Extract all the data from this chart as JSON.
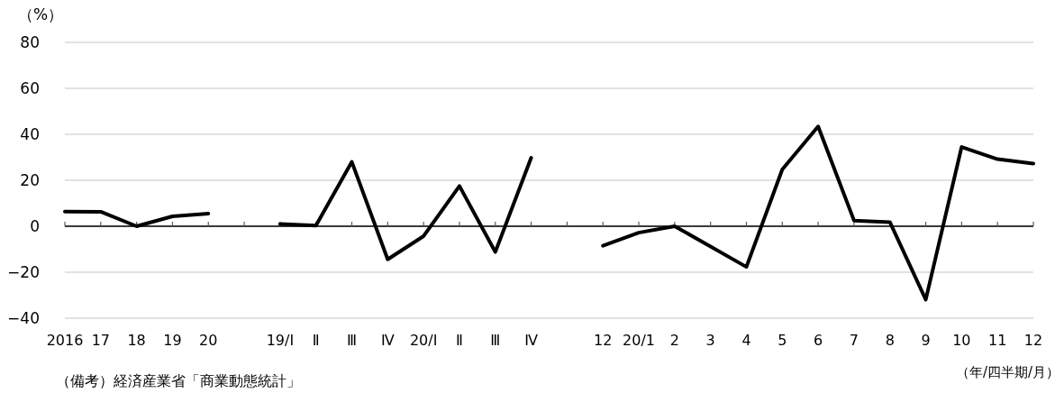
{
  "chart_data": {
    "type": "line",
    "ylabel": "（%）",
    "xlabel": "（年/四半期/月）",
    "annotations": [
      "（備考）経済産業省「商業動態統計」"
    ],
    "categories": [
      "2016",
      "17",
      "18",
      "19",
      "20",
      null,
      "19/Ⅰ",
      "Ⅱ",
      "Ⅲ",
      "Ⅳ",
      "20/Ⅰ",
      "Ⅱ",
      "Ⅲ",
      "Ⅳ",
      null,
      "12",
      "20/1",
      "2",
      "3",
      "4",
      "5",
      "6",
      "7",
      "8",
      "9",
      "10",
      "11",
      "12"
    ],
    "series": [
      {
        "color": "#000000",
        "values": [
          6.4,
          6.3,
          0,
          4.3,
          5.5,
          null,
          1.0,
          0.3,
          28.0,
          -14.4,
          -4.3,
          17.5,
          -11.2,
          29.8,
          null,
          -8.5,
          -2.8,
          0,
          -8.8,
          -17.7,
          24.7,
          43.4,
          2.5,
          1.8,
          -31.9,
          34.5,
          29.2,
          27.3
        ]
      }
    ],
    "ylim": [
      -40,
      80
    ],
    "yticks": [
      -40,
      -20,
      0,
      20,
      40,
      60,
      80
    ],
    "grid": "y"
  }
}
